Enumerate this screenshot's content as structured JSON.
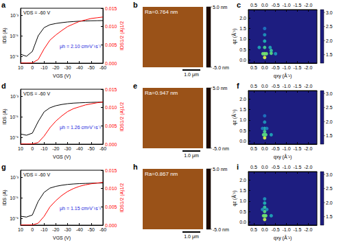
{
  "chart_data": [
    {
      "type": "line",
      "title": "a",
      "log": "y",
      "x_label": "VGS (V)",
      "y_label": "IDS (A)",
      "y2_label": "IDS1/2 (A)1/2",
      "annotations": [
        "VDS = -60 V",
        "μh = 2.10 cm²V⁻¹s⁻¹"
      ],
      "x": [
        10,
        5,
        0,
        -5,
        -10,
        -15,
        -20,
        -25,
        -30,
        -35,
        -40,
        -45,
        -50,
        -55,
        -60
      ],
      "xlim": [
        10,
        -60
      ],
      "xticks": [
        10,
        0,
        -10,
        -20,
        -30,
        -40,
        -50,
        -60
      ],
      "ylim": [
        1e-10,
        0.01
      ],
      "yticks": [
        {
          "value": 1e-09,
          "label": "10⁻⁹"
        },
        {
          "value": 1e-06,
          "label": "10⁻⁶"
        },
        {
          "value": 0.001,
          "label": "10⁻³"
        }
      ],
      "y2lim": [
        0,
        0.015
      ],
      "y2ticks": [
        {
          "value": 0,
          "label": "0.000"
        },
        0.005,
        {
          "value": 0.01,
          "label": "0.010"
        },
        0.015
      ],
      "series": [
        {
          "color": "#000000",
          "values": [
            2e-09,
            1e-09,
            5e-09,
            1e-06,
            1.5e-05,
            4e-05,
            6e-05,
            8e-05,
            0.0001,
            0.000115,
            0.00013,
            0.00014,
            0.00015,
            0.000155,
            0.00016
          ]
        },
        {
          "color": "#ff0000",
          "axis": "y2",
          "values": [
            4e-05,
            3e-05,
            7e-05,
            0.001,
            0.0039,
            0.0063,
            0.0077,
            0.0089,
            0.01,
            0.0107,
            0.0114,
            0.0118,
            0.0122,
            0.0124,
            0.0126
          ]
        }
      ]
    },
    {
      "type": "image",
      "title": "b",
      "annotations": [
        "Ra=0.764 nm"
      ],
      "scale_bar": "1.0 μm",
      "tick_labels": false,
      "colorbar": {
        "range": [
          -5,
          5
        ],
        "ticks": [
          {
            "value": 5,
            "label": "5.0 nm"
          },
          {
            "value": -5,
            "label": "-5.0 nm"
          }
        ]
      }
    },
    {
      "type": "scatter",
      "title": "c",
      "x_label": "qxy (Å⁻¹)",
      "y_label": "qz (Å⁻¹)",
      "xlim": [
        0.75,
        -2.4
      ],
      "xticks": [
        0.5,
        {
          "value": 0,
          "label": "0.0"
        },
        -0.5,
        {
          "value": -1,
          "label": "-1.0"
        },
        -1.5,
        {
          "value": -2,
          "label": "-2.0"
        }
      ],
      "ylim": [
        -0.15,
        2.4
      ],
      "yticks": [
        {
          "value": 0,
          "label": "0.0"
        },
        0.5,
        {
          "value": 1,
          "label": "1.0"
        },
        1.5,
        {
          "value": 2,
          "label": "2.0"
        }
      ],
      "points": [
        [
          0,
          0.12,
          3.0
        ],
        [
          0,
          0.3,
          2.8
        ],
        [
          0.08,
          0.3,
          2.6
        ],
        [
          -0.08,
          0.3,
          2.6
        ],
        [
          -0.3,
          0.32,
          2.5
        ],
        [
          -0.3,
          0.45,
          2.3
        ],
        [
          0,
          0.6,
          2.4
        ],
        [
          0,
          0.9,
          2.1
        ],
        [
          -0.25,
          0.6,
          2.0
        ],
        [
          0.25,
          0.6,
          2.0
        ],
        [
          -0.5,
          0.3,
          1.9
        ],
        [
          0,
          1.2,
          1.9
        ],
        [
          0,
          1.5,
          1.7
        ]
      ],
      "colorbar": {
        "range": [
          1.2,
          3.1
        ],
        "ticks": [
          1.5,
          {
            "value": 2,
            "label": "2.0"
          },
          2.5,
          {
            "value": 3,
            "label": "3.0"
          }
        ]
      }
    },
    {
      "type": "line",
      "title": "d",
      "log": "y",
      "x_label": "VGS (V)",
      "y_label": "IDS (A)",
      "y2_label": "IDS1/2 (A)1/2",
      "annotations": [
        "VDS = -60 V",
        "μh = 1.26 cm²V⁻¹s⁻¹"
      ],
      "x": [
        10,
        5,
        0,
        -5,
        -10,
        -15,
        -20,
        -25,
        -30,
        -35,
        -40,
        -45,
        -50,
        -55,
        -60
      ],
      "xlim": [
        10,
        -60
      ],
      "xticks": [
        10,
        0,
        -10,
        -20,
        -30,
        -40,
        -50,
        -60
      ],
      "ylim": [
        1e-10,
        0.01
      ],
      "yticks": [
        {
          "value": 1e-09,
          "label": "10⁻⁹"
        },
        {
          "value": 1e-06,
          "label": "10⁻⁶"
        },
        {
          "value": 0.001,
          "label": "10⁻³"
        }
      ],
      "y2lim": [
        0,
        0.015
      ],
      "y2ticks": [
        {
          "value": 0,
          "label": "0.000"
        },
        0.005,
        {
          "value": 0.01,
          "label": "0.010"
        },
        0.015
      ],
      "series": [
        {
          "color": "#000000",
          "values": [
            3e-09,
            2e-09,
            4e-09,
            2e-07,
            5e-06,
            2e-05,
            4e-05,
            6e-05,
            8e-05,
            9.5e-05,
            0.000105,
            0.000115,
            0.000122,
            0.000128,
            0.000132
          ]
        },
        {
          "color": "#ff0000",
          "axis": "y2",
          "values": [
            5e-05,
            4e-05,
            6e-05,
            0.00045,
            0.0022,
            0.0045,
            0.0063,
            0.0077,
            0.0089,
            0.0097,
            0.0102,
            0.0107,
            0.011,
            0.0113,
            0.0115
          ]
        }
      ]
    },
    {
      "type": "image",
      "title": "e",
      "annotations": [
        "Ra=0.947 nm"
      ],
      "scale_bar": "1.0 μm",
      "tick_labels": false,
      "colorbar": {
        "range": [
          -5,
          5
        ],
        "ticks": [
          {
            "value": 5,
            "label": "5.0 nm"
          },
          {
            "value": -5,
            "label": "-5.0 nm"
          }
        ]
      }
    },
    {
      "type": "scatter",
      "title": "f",
      "x_label": "qxy (Å⁻¹)",
      "y_label": "qz (Å⁻¹)",
      "xlim": [
        0.75,
        -2.4
      ],
      "xticks": [
        0.5,
        {
          "value": 0,
          "label": "0.0"
        },
        -0.5,
        {
          "value": -1,
          "label": "-1.0"
        },
        -1.5,
        {
          "value": -2,
          "label": "-2.0"
        }
      ],
      "ylim": [
        -0.15,
        2.4
      ],
      "yticks": [
        {
          "value": 0,
          "label": "0.0"
        },
        0.5,
        {
          "value": 1,
          "label": "1.0"
        },
        1.5,
        {
          "value": 2,
          "label": "2.0"
        }
      ],
      "points": [
        [
          0,
          0.15,
          3.0
        ],
        [
          0,
          0.3,
          2.7
        ],
        [
          0.05,
          0.3,
          2.5
        ],
        [
          -0.05,
          0.3,
          2.5
        ],
        [
          0,
          0.45,
          2.4
        ],
        [
          0,
          0.6,
          2.2
        ],
        [
          0,
          0.9,
          1.9
        ],
        [
          0.1,
          0.6,
          1.8
        ],
        [
          -0.1,
          0.6,
          1.8
        ],
        [
          -0.3,
          0.3,
          2.0
        ],
        [
          0,
          1.2,
          1.7
        ]
      ],
      "colorbar": {
        "range": [
          1.2,
          3.1
        ],
        "ticks": [
          1.5,
          {
            "value": 2,
            "label": "2.0"
          },
          2.5,
          {
            "value": 3,
            "label": "3.0"
          }
        ]
      }
    },
    {
      "type": "line",
      "title": "g",
      "log": "y",
      "x_label": "VGS (V)",
      "y_label": "IDS (A)",
      "y2_label": "IDS1/2 (A)1/2",
      "annotations": [
        "VDS = -60 V",
        "μh = 1.15 cm²V⁻¹s⁻¹"
      ],
      "x": [
        10,
        5,
        0,
        -5,
        -10,
        -15,
        -20,
        -25,
        -30,
        -35,
        -40,
        -45,
        -50,
        -55,
        -60
      ],
      "xlim": [
        10,
        -60
      ],
      "xticks": [
        10,
        0,
        -10,
        -20,
        -30,
        -40,
        -50,
        -60
      ],
      "ylim": [
        1e-10,
        0.01
      ],
      "yticks": [
        {
          "value": 1e-09,
          "label": "10⁻⁹"
        },
        {
          "value": 1e-06,
          "label": "10⁻⁶"
        },
        {
          "value": 0.001,
          "label": "10⁻³"
        }
      ],
      "y2lim": [
        0,
        0.015
      ],
      "y2ticks": [
        {
          "value": 0,
          "label": "0.000"
        },
        0.005,
        {
          "value": 0.01,
          "label": "0.010"
        },
        0.015
      ],
      "series": [
        {
          "color": "#000000",
          "values": [
            2e-09,
            1.5e-09,
            3e-09,
            3e-07,
            6e-06,
            2.5e-05,
            4.5e-05,
            6.5e-05,
            8.5e-05,
            0.0001,
            0.000112,
            0.00012,
            0.000128,
            0.000133,
            0.000138
          ]
        },
        {
          "color": "#ff0000",
          "axis": "y2",
          "values": [
            4e-05,
            4e-05,
            5e-05,
            0.00055,
            0.0024,
            0.005,
            0.0067,
            0.0081,
            0.0092,
            0.01,
            0.0106,
            0.011,
            0.0113,
            0.0115,
            0.0117
          ]
        }
      ]
    },
    {
      "type": "image",
      "title": "h",
      "annotations": [
        "Ra=0.867 nm"
      ],
      "scale_bar": "1.0 μm",
      "tick_labels": false,
      "colorbar": {
        "range": [
          -5,
          5
        ],
        "ticks": [
          {
            "value": 5,
            "label": "5.0 nm"
          },
          {
            "value": -5,
            "label": "-5.0 nm"
          }
        ]
      }
    },
    {
      "type": "scatter",
      "title": "i",
      "x_label": "qxy (Å⁻¹)",
      "y_label": "qz (Å⁻¹)",
      "xlim": [
        0.75,
        -2.4
      ],
      "xticks": [
        0.5,
        {
          "value": 0,
          "label": "0.0"
        },
        -0.5,
        {
          "value": -1,
          "label": "-1.0"
        },
        -1.5,
        {
          "value": -2,
          "label": "-2.0"
        }
      ],
      "ylim": [
        -0.15,
        2.4
      ],
      "yticks": [
        {
          "value": 0,
          "label": "0.0"
        },
        0.5,
        {
          "value": 1,
          "label": "1.0"
        },
        1.5,
        {
          "value": 2,
          "label": "2.0"
        }
      ],
      "points": [
        [
          0,
          0.12,
          2.9
        ],
        [
          0,
          0.3,
          2.8
        ],
        [
          0.05,
          0.3,
          2.6
        ],
        [
          -0.05,
          0.3,
          2.6
        ],
        [
          0,
          0.5,
          2.5
        ],
        [
          0,
          0.7,
          2.3
        ],
        [
          0,
          0.9,
          2.1
        ],
        [
          0,
          1.1,
          1.9
        ],
        [
          -0.3,
          0.3,
          2.0
        ],
        [
          0.1,
          0.6,
          1.9
        ],
        [
          -0.1,
          0.6,
          1.9
        ]
      ],
      "colorbar": {
        "range": [
          1.2,
          3.1
        ],
        "ticks": [
          1.5,
          {
            "value": 2,
            "label": "2.0"
          },
          2.5,
          {
            "value": 3,
            "label": "3.0"
          }
        ]
      }
    }
  ]
}
